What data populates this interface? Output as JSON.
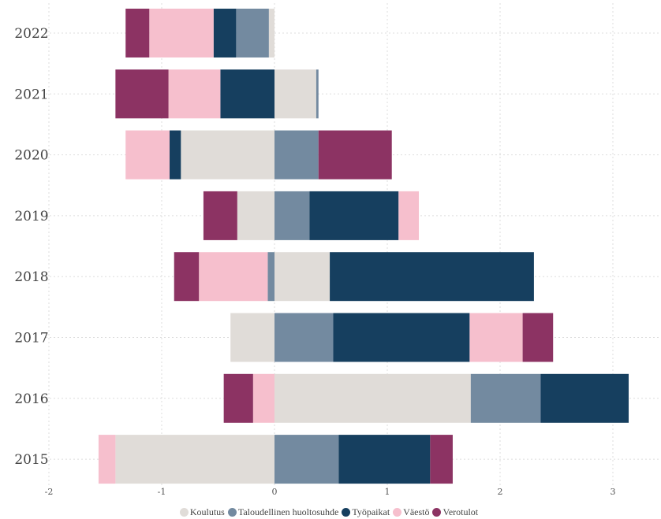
{
  "chart_data": {
    "type": "bar",
    "orientation": "horizontal",
    "stacked": true,
    "categories": [
      "2022",
      "2021",
      "2020",
      "2019",
      "2018",
      "2017",
      "2016",
      "2015"
    ],
    "xlim": [
      -2,
      3.2
    ],
    "xticks": [
      -2,
      -1,
      0,
      1,
      2,
      3
    ],
    "xtick_labels": [
      "-2",
      "-1",
      "0",
      "1",
      "2",
      "3"
    ],
    "grid": true,
    "legend_position": "bottom",
    "series": [
      {
        "name": "Koulutus",
        "color": "#e0dcd8",
        "values": [
          -0.05,
          0.37,
          -0.83,
          -0.33,
          0.49,
          -0.39,
          1.74,
          -1.41
        ]
      },
      {
        "name": "Taloudellinen huoltosuhde",
        "color": "#738aa0",
        "values": [
          -0.29,
          0.02,
          0.39,
          0.31,
          -0.06,
          0.52,
          0.62,
          0.57
        ]
      },
      {
        "name": "Työpaikat",
        "color": "#163f5f",
        "values": [
          -0.2,
          -0.48,
          -0.1,
          0.79,
          1.81,
          1.21,
          0.78,
          0.81
        ]
      },
      {
        "name": "Väestö",
        "color": "#f6bfcd",
        "values": [
          -0.57,
          -0.46,
          -0.39,
          0.18,
          -0.61,
          0.47,
          -0.19,
          -0.15
        ]
      },
      {
        "name": "Verotulot",
        "color": "#8c3363",
        "values": [
          -0.21,
          -0.47,
          0.65,
          -0.3,
          -0.22,
          0.27,
          -0.26,
          0.2
        ]
      }
    ]
  }
}
